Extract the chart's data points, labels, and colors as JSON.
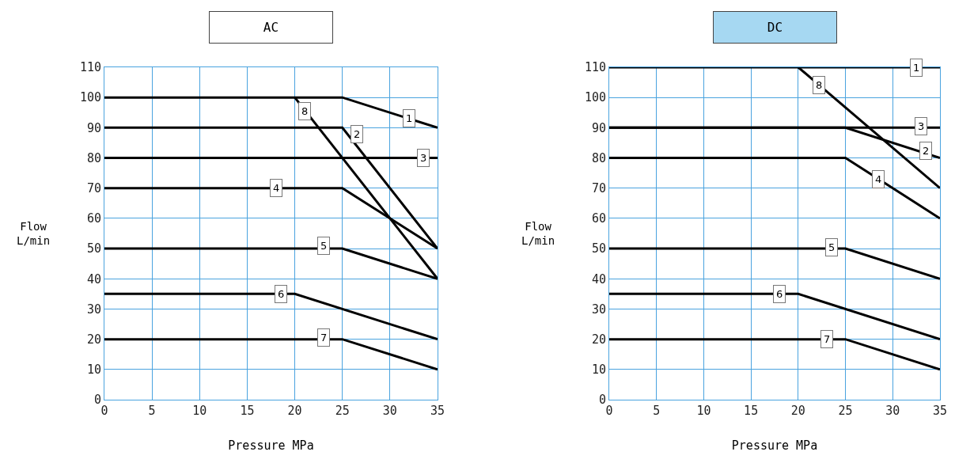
{
  "chart_data": [
    {
      "type": "line",
      "title": "AC",
      "xlabel": "Pressure MPa",
      "ylabel": "Flow\nL/min",
      "xlim": [
        0,
        35
      ],
      "ylim": [
        0,
        110
      ],
      "xticks": [
        0,
        5,
        10,
        15,
        20,
        25,
        30,
        35
      ],
      "yticks": [
        0,
        10,
        20,
        30,
        40,
        50,
        60,
        70,
        80,
        90,
        100,
        110
      ],
      "grid": true,
      "series": [
        {
          "color": "#000000",
          "x": [
            0,
            25,
            35
          ],
          "values": [
            100,
            100,
            90
          ]
        },
        {
          "color": "#000000",
          "x": [
            0,
            25,
            35
          ],
          "values": [
            90,
            90,
            50
          ]
        },
        {
          "color": "#000000",
          "x": [
            0,
            35
          ],
          "values": [
            80,
            80
          ]
        },
        {
          "color": "#000000",
          "x": [
            0,
            25,
            35
          ],
          "values": [
            70,
            70,
            50
          ]
        },
        {
          "color": "#000000",
          "x": [
            0,
            25,
            35
          ],
          "values": [
            50,
            50,
            40
          ]
        },
        {
          "color": "#000000",
          "x": [
            0,
            20,
            35
          ],
          "values": [
            35,
            35,
            20
          ]
        },
        {
          "color": "#000000",
          "x": [
            0,
            25,
            35
          ],
          "values": [
            20,
            20,
            10
          ]
        },
        {
          "color": "#000000",
          "x": [
            20,
            35
          ],
          "values": [
            100,
            40
          ]
        }
      ],
      "annotations": [
        {
          "text": "1",
          "x": 32,
          "y": 93
        },
        {
          "text": "2",
          "x": 26.5,
          "y": 88
        },
        {
          "text": "3",
          "x": 33.5,
          "y": 80
        },
        {
          "text": "4",
          "x": 18,
          "y": 70
        },
        {
          "text": "5",
          "x": 23,
          "y": 51
        },
        {
          "text": "6",
          "x": 18.5,
          "y": 35
        },
        {
          "text": "7",
          "x": 23,
          "y": 20.5
        },
        {
          "text": "8",
          "x": 21,
          "y": 95.5
        }
      ]
    },
    {
      "type": "line",
      "title": "DC",
      "xlabel": "Pressure MPa",
      "ylabel": "Flow\nL/min",
      "xlim": [
        0,
        35
      ],
      "ylim": [
        0,
        110
      ],
      "xticks": [
        0,
        5,
        10,
        15,
        20,
        25,
        30,
        35
      ],
      "yticks": [
        0,
        10,
        20,
        30,
        40,
        50,
        60,
        70,
        80,
        90,
        100,
        110
      ],
      "grid": true,
      "series": [
        {
          "color": "#000000",
          "x": [
            0,
            35
          ],
          "values": [
            110,
            110
          ]
        },
        {
          "color": "#000000",
          "x": [
            0,
            25,
            35
          ],
          "values": [
            90,
            90,
            80
          ]
        },
        {
          "color": "#000000",
          "x": [
            0,
            35
          ],
          "values": [
            90,
            90
          ]
        },
        {
          "color": "#000000",
          "x": [
            0,
            25,
            35
          ],
          "values": [
            80,
            80,
            60
          ]
        },
        {
          "color": "#000000",
          "x": [
            0,
            25,
            35
          ],
          "values": [
            50,
            50,
            40
          ]
        },
        {
          "color": "#000000",
          "x": [
            0,
            20,
            35
          ],
          "values": [
            35,
            35,
            20
          ]
        },
        {
          "color": "#000000",
          "x": [
            0,
            25,
            35
          ],
          "values": [
            20,
            20,
            10
          ]
        },
        {
          "color": "#000000",
          "x": [
            20,
            35
          ],
          "values": [
            110,
            70
          ]
        }
      ],
      "annotations": [
        {
          "text": "1",
          "x": 32.5,
          "y": 110
        },
        {
          "text": "2",
          "x": 33.5,
          "y": 82.5
        },
        {
          "text": "3",
          "x": 33,
          "y": 90.5
        },
        {
          "text": "4",
          "x": 28.5,
          "y": 73
        },
        {
          "text": "5",
          "x": 23.5,
          "y": 50.5
        },
        {
          "text": "6",
          "x": 18,
          "y": 35
        },
        {
          "text": "7",
          "x": 23,
          "y": 20
        },
        {
          "text": "8",
          "x": 22.2,
          "y": 104
        }
      ]
    }
  ]
}
